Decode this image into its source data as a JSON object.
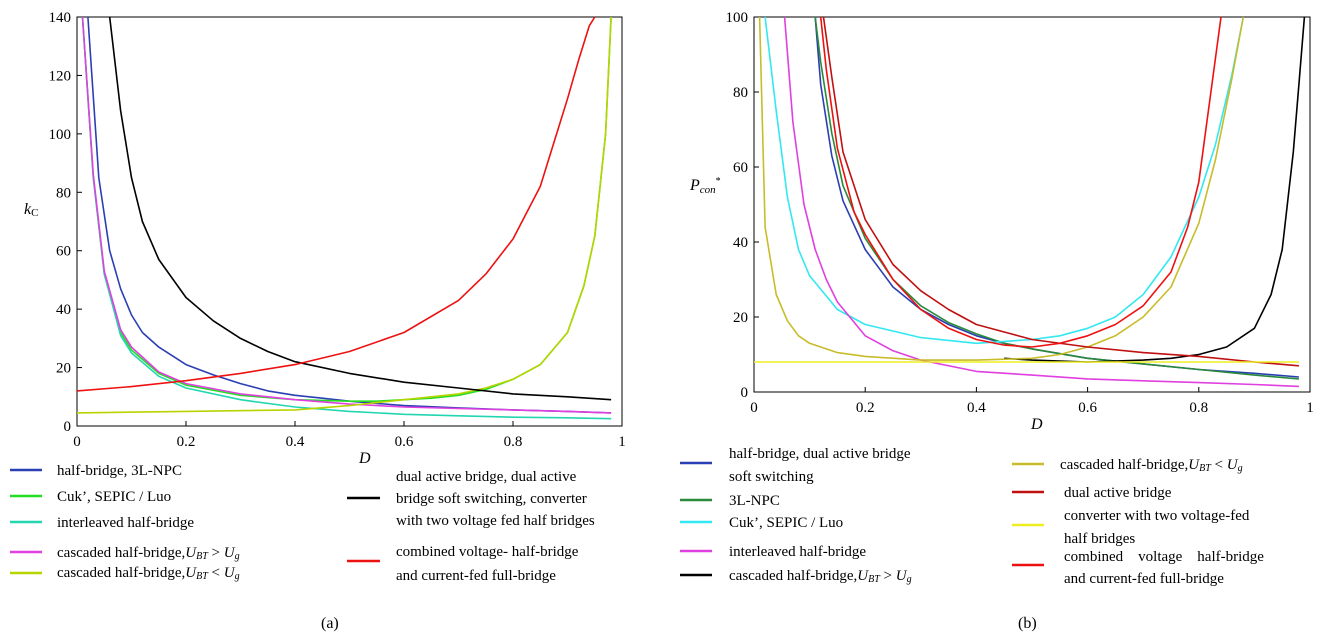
{
  "chart_data": [
    {
      "type": "line",
      "panel_label": "(a)",
      "xlabel": "D",
      "ylabel": "kC",
      "xlim": [
        0,
        1
      ],
      "ylim": [
        0,
        140
      ],
      "xticks": [
        "0",
        "0.2",
        "0.4",
        "0.6",
        "0.8",
        "1"
      ],
      "yticks": [
        "0",
        "20",
        "40",
        "60",
        "80",
        "100",
        "120",
        "140"
      ],
      "grid": false,
      "series": [
        {
          "name": "half-bridge, 3L-NPC",
          "color": "#2b3fb4",
          "x": [
            0.02,
            0.04,
            0.06,
            0.08,
            0.1,
            0.12,
            0.15,
            0.2,
            0.25,
            0.3,
            0.35,
            0.4,
            0.45,
            0.5,
            0.6,
            0.7,
            0.8,
            0.9,
            0.98
          ],
          "y": [
            140,
            85,
            60,
            47,
            38,
            32,
            27,
            21,
            17.5,
            14.5,
            12,
            10.5,
            9.5,
            8.5,
            7,
            6.2,
            5.5,
            5,
            4.5
          ]
        },
        {
          "name": "Cuk’, SEPIC / Luo",
          "color": "#22dd22",
          "x": [
            0.01,
            0.03,
            0.05,
            0.08,
            0.1,
            0.15,
            0.2,
            0.3,
            0.4,
            0.5,
            0.55,
            0.6,
            0.65,
            0.7,
            0.75,
            0.8,
            0.85,
            0.9,
            0.93,
            0.95,
            0.97,
            0.98
          ],
          "y": [
            140,
            85,
            52,
            32,
            26,
            18,
            14,
            10.5,
            9,
            8.5,
            8.5,
            9,
            9.5,
            10.5,
            12.5,
            16,
            21,
            32,
            48,
            65,
            100,
            140
          ]
        },
        {
          "name": "interleaved half-bridge",
          "color": "#22d6b0",
          "x": [
            0.01,
            0.03,
            0.05,
            0.08,
            0.1,
            0.15,
            0.2,
            0.3,
            0.4,
            0.5,
            0.6,
            0.7,
            0.8,
            0.9,
            0.98
          ],
          "y": [
            140,
            85,
            52,
            31,
            25,
            17,
            13,
            9,
            6.5,
            5,
            4,
            3.5,
            3,
            2.8,
            2.5
          ]
        },
        {
          "name": "cascaded half-bridge, UBT > Ug",
          "color": "#e040e0",
          "x": [
            0.01,
            0.03,
            0.05,
            0.08,
            0.1,
            0.15,
            0.2,
            0.3,
            0.4,
            0.5,
            0.6,
            0.7,
            0.8,
            0.9,
            0.98
          ],
          "y": [
            140,
            86,
            53,
            33,
            27,
            18.5,
            14.5,
            11,
            9,
            7.5,
            6.5,
            6,
            5.5,
            5,
            4.5
          ]
        },
        {
          "name": "cascaded half-bridge, UBT < Ug",
          "color": "#b8d400",
          "x": [
            0,
            0.2,
            0.4,
            0.5,
            0.55,
            0.6,
            0.65,
            0.7,
            0.75,
            0.8,
            0.85,
            0.9,
            0.93,
            0.95,
            0.97,
            0.98
          ],
          "y": [
            4.5,
            5,
            5.5,
            7,
            8,
            9,
            10,
            11,
            13,
            16,
            21,
            32,
            48,
            65,
            100,
            140
          ]
        },
        {
          "name": "dual active bridge, dual active bridge soft switching, converter with two voltage fed half bridges",
          "color": "#000000",
          "x": [
            0.06,
            0.08,
            0.1,
            0.12,
            0.15,
            0.2,
            0.25,
            0.3,
            0.35,
            0.4,
            0.5,
            0.6,
            0.7,
            0.8,
            0.9,
            0.98
          ],
          "y": [
            140,
            108,
            85,
            70,
            57,
            44,
            36,
            30,
            25.5,
            22,
            18,
            15,
            13,
            11,
            10,
            9
          ]
        },
        {
          "name": "combined voltage- half-bridge and current-fed full-bridge",
          "color": "#ee1111",
          "x": [
            0,
            0.1,
            0.2,
            0.3,
            0.4,
            0.5,
            0.6,
            0.7,
            0.75,
            0.8,
            0.85,
            0.88,
            0.9,
            0.92,
            0.94,
            0.95
          ],
          "y": [
            12,
            13.5,
            15.5,
            18,
            21,
            25.5,
            32,
            43,
            52,
            64,
            82,
            100,
            112,
            125,
            137,
            140
          ]
        }
      ]
    },
    {
      "type": "line",
      "panel_label": "(b)",
      "xlabel": "D",
      "ylabel": "Pcon*",
      "xlim": [
        0,
        1
      ],
      "ylim": [
        0,
        100
      ],
      "xticks": [
        "0",
        "0.2",
        "0.4",
        "0.6",
        "0.8",
        "1"
      ],
      "yticks": [
        "0",
        "20",
        "40",
        "60",
        "80",
        "100"
      ],
      "grid": false,
      "series": [
        {
          "name": "half-bridge, dual active bridge soft switching",
          "color": "#2b3fb4",
          "x": [
            0.11,
            0.12,
            0.14,
            0.16,
            0.2,
            0.25,
            0.3,
            0.35,
            0.4,
            0.45,
            0.5,
            0.6,
            0.7,
            0.8,
            0.9,
            0.98
          ],
          "y": [
            100,
            82,
            63,
            51,
            38,
            28,
            22,
            18,
            15,
            13,
            11.5,
            9,
            7.5,
            6,
            5,
            4
          ]
        },
        {
          "name": "3L-NPC",
          "color": "#2a8a3a",
          "x": [
            0.11,
            0.12,
            0.14,
            0.16,
            0.2,
            0.25,
            0.3,
            0.35,
            0.4,
            0.45,
            0.5,
            0.6,
            0.7,
            0.8,
            0.9,
            0.98
          ],
          "y": [
            100,
            88,
            69,
            55,
            41,
            30,
            23,
            18.5,
            15.5,
            13,
            11.5,
            9,
            7.5,
            6,
            4.5,
            3.5
          ]
        },
        {
          "name": "Cuk’, SEPIC / Luo",
          "color": "#33e8f0",
          "x": [
            0.02,
            0.04,
            0.06,
            0.08,
            0.1,
            0.15,
            0.2,
            0.3,
            0.4,
            0.5,
            0.55,
            0.6,
            0.65,
            0.7,
            0.75,
            0.8,
            0.83,
            0.86,
            0.88
          ],
          "y": [
            100,
            75,
            52,
            38,
            31,
            22,
            18,
            14.5,
            13,
            14,
            15,
            17,
            20,
            26,
            36,
            52,
            66,
            85,
            100
          ]
        },
        {
          "name": "interleaved half-bridge",
          "color": "#e040e0",
          "x": [
            0.055,
            0.07,
            0.09,
            0.11,
            0.13,
            0.15,
            0.2,
            0.25,
            0.3,
            0.4,
            0.5,
            0.6,
            0.7,
            0.8,
            0.9,
            0.98
          ],
          "y": [
            100,
            72,
            50,
            38,
            30,
            24,
            15,
            11,
            8.5,
            5.5,
            4.5,
            3.5,
            3,
            2.5,
            2,
            1.5
          ]
        },
        {
          "name": "cascaded half-bridge, UBT > Ug",
          "color": "#000000",
          "x": [
            0.45,
            0.5,
            0.6,
            0.7,
            0.75,
            0.8,
            0.85,
            0.9,
            0.93,
            0.95,
            0.97,
            0.98,
            0.99
          ],
          "y": [
            9,
            8.5,
            8,
            8.5,
            9,
            10,
            12,
            17,
            26,
            38,
            64,
            82,
            100
          ]
        },
        {
          "name": "cascaded half-bridge, UBT < Ug",
          "color": "#c8bc2a",
          "x": [
            0.01,
            0.02,
            0.04,
            0.06,
            0.08,
            0.1,
            0.15,
            0.2,
            0.3,
            0.4,
            0.5,
            0.55,
            0.6,
            0.65,
            0.7,
            0.75,
            0.8,
            0.83,
            0.86,
            0.88
          ],
          "y": [
            100,
            44,
            26,
            19,
            15,
            13,
            10.5,
            9.5,
            8.5,
            8.5,
            9,
            10,
            12,
            15,
            20,
            28,
            45,
            62,
            84,
            100
          ]
        },
        {
          "name": "dual active bridge",
          "color": "#c01010",
          "x": [
            0.125,
            0.14,
            0.16,
            0.2,
            0.25,
            0.3,
            0.35,
            0.4,
            0.45,
            0.5,
            0.6,
            0.7,
            0.8,
            0.9,
            0.98
          ],
          "y": [
            100,
            84,
            64,
            46,
            34,
            27,
            22,
            18,
            16,
            14,
            12,
            10.5,
            9.5,
            8,
            7
          ]
        },
        {
          "name": "converter with two voltage-fed half bridges",
          "color": "#eeee22",
          "x": [
            0,
            0.2,
            0.4,
            0.6,
            0.8,
            0.98
          ],
          "y": [
            8,
            8,
            8,
            8,
            8,
            8
          ]
        },
        {
          "name": "combined voltage half-bridge and current-fed full-bridge",
          "color": "#ee1111",
          "x": [
            0.12,
            0.13,
            0.15,
            0.18,
            0.2,
            0.25,
            0.3,
            0.35,
            0.4,
            0.45,
            0.5,
            0.55,
            0.6,
            0.65,
            0.7,
            0.75,
            0.78,
            0.8,
            0.82,
            0.84
          ],
          "y": [
            100,
            86,
            65,
            48,
            42,
            30,
            22,
            17,
            14,
            12.5,
            12,
            13,
            15,
            18,
            23,
            32,
            44,
            56,
            78,
            100
          ]
        }
      ]
    }
  ],
  "legend_a_left": [
    "half-bridge, 3L-NPC",
    "Cuk’, SEPIC / Luo",
    "interleaved half-bridge",
    "cascaded half-bridge,",
    "cascaded half-bridge,"
  ],
  "legend_a_right": {
    "dab_line1": "dual active bridge, dual active",
    "dab_line2": "bridge soft switching, converter",
    "dab_line3": "with two voltage fed half bridges",
    "comb_line1": "combined voltage- half-bridge",
    "comb_line2": "and current-fed full-bridge"
  },
  "legend_b_left": {
    "hb_line1": "half-bridge, dual active bridge",
    "hb_line2": "soft switching",
    "npc": "3L-NPC",
    "cuk": "Cuk’, SEPIC / Luo",
    "inter": "interleaved half-bridge",
    "casc": "cascaded half-bridge,"
  },
  "legend_b_right": {
    "casc": "cascaded half-bridge,",
    "dab": "dual active bridge",
    "conv_line1": "converter with two voltage-fed",
    "conv_line2": "half bridges",
    "comb_line1": "combined    voltage    half-bridge",
    "comb_line2": "and current-fed full-bridge"
  },
  "sym": {
    "ubt_u": "U",
    "ubt_sub": "BT",
    "ug_u": "U",
    "ug_sub": "g",
    "gt": " > ",
    "lt": " < "
  },
  "captions": {
    "a": "(a)",
    "b": "(b)"
  }
}
